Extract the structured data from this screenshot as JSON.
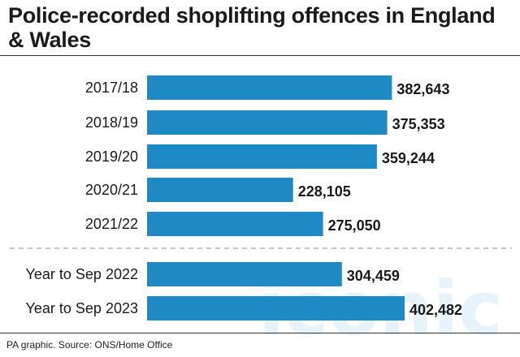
{
  "title": "Police-recorded shoplifting offences in England & Wales",
  "source": "PA graphic. Source: ONS/Home Office",
  "watermark": "iconic",
  "colors": {
    "bar": "#1d8ac6",
    "text": "#1a1a1a",
    "divider": "#b5b5b5"
  },
  "chart_data": {
    "type": "bar",
    "orientation": "horizontal",
    "categories": [
      "2017/18",
      "2018/19",
      "2019/20",
      "2020/21",
      "2021/22",
      "Year to Sep 2022",
      "Year to Sep 2023"
    ],
    "values": [
      382643,
      375353,
      359244,
      228105,
      275050,
      304459,
      402482
    ],
    "value_labels": [
      "382,643",
      "375,353",
      "359,244",
      "228,105",
      "275,050",
      "304,459",
      "402,482"
    ],
    "title": "Police-recorded shoplifting offences in England & Wales",
    "xlabel": "",
    "ylabel": "",
    "xlim": [
      0,
      402482
    ],
    "grid": false,
    "legend": "none",
    "dashed_divider_after_index": 4
  }
}
